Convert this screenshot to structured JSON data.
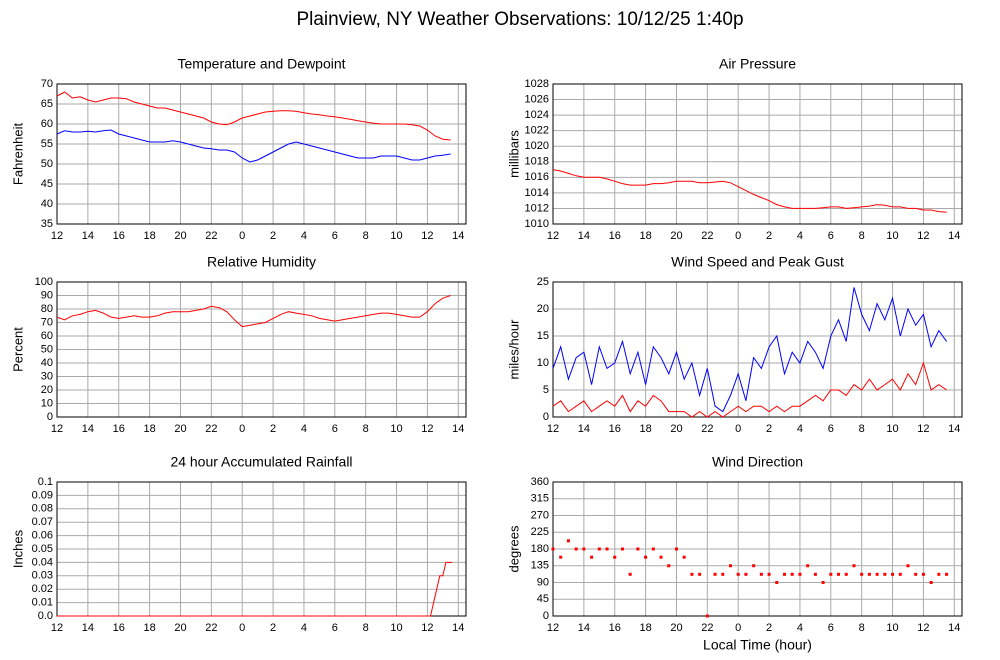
{
  "title": "Plainview, NY Weather Observations: 10/12/25 1:40p",
  "chart_data": [
    {
      "type": "line",
      "title": "Temperature and Dewpoint",
      "ylabel": "Fahrenheit",
      "x": [
        0,
        0.5,
        1,
        1.5,
        2,
        2.5,
        3,
        3.5,
        4,
        4.5,
        5,
        5.5,
        6,
        6.5,
        7,
        7.5,
        8,
        8.5,
        9,
        9.5,
        10,
        10.5,
        11,
        11.5,
        12,
        12.5,
        13,
        13.5,
        14,
        14.5,
        15,
        15.5,
        16,
        16.5,
        17,
        17.5,
        18,
        18.5,
        19,
        19.5,
        20,
        20.5,
        21,
        21.5,
        22,
        22.5,
        23,
        23.5,
        24,
        24.5,
        25,
        25.5
      ],
      "series": [
        {
          "color": "#ff0000",
          "values": [
            67,
            68,
            66.5,
            66.8,
            66,
            65.5,
            66,
            66.5,
            66.5,
            66.3,
            65.5,
            65,
            64.5,
            64,
            64,
            63.5,
            63,
            62.5,
            62,
            61.5,
            60.5,
            60,
            59.8,
            60.5,
            61.5,
            62,
            62.5,
            63,
            63.2,
            63.3,
            63.3,
            63.2,
            62.8,
            62.5,
            62.3,
            62,
            61.8,
            61.5,
            61.2,
            60.8,
            60.5,
            60.2,
            60,
            60,
            60,
            60,
            59.8,
            59.5,
            58.5,
            57,
            56.2,
            56
          ]
        },
        {
          "color": "#0000ff",
          "values": [
            57.5,
            58.3,
            58,
            58,
            58.2,
            58,
            58.3,
            58.5,
            57.5,
            57,
            56.5,
            56,
            55.5,
            55.5,
            55.5,
            55.8,
            55.5,
            55,
            54.5,
            54,
            53.8,
            53.5,
            53.5,
            53,
            51.5,
            50.5,
            51,
            52,
            53,
            54,
            55,
            55.5,
            55,
            54.5,
            54,
            53.5,
            53,
            52.5,
            52,
            51.5,
            51.5,
            51.5,
            52,
            52,
            52,
            51.5,
            51,
            51,
            51.5,
            52,
            52.2,
            52.5
          ]
        }
      ],
      "xlim": [
        0,
        26.5
      ],
      "ylim": [
        35,
        70
      ],
      "yticks": [
        35,
        40,
        45,
        50,
        55,
        60,
        65,
        70
      ],
      "xticks": [
        {
          "value": 0,
          "label": "12"
        },
        {
          "value": 2,
          "label": "14"
        },
        {
          "value": 4,
          "label": "16"
        },
        {
          "value": 6,
          "label": "18"
        },
        {
          "value": 8,
          "label": "20"
        },
        {
          "value": 10,
          "label": "22"
        },
        {
          "value": 12,
          "label": "0"
        },
        {
          "value": 14,
          "label": "2"
        },
        {
          "value": 16,
          "label": "4"
        },
        {
          "value": 18,
          "label": "6"
        },
        {
          "value": 20,
          "label": "8"
        },
        {
          "value": 22,
          "label": "10"
        },
        {
          "value": 24,
          "label": "12"
        },
        {
          "value": 26,
          "label": "14"
        }
      ],
      "grid": true
    },
    {
      "type": "line",
      "title": "Air Pressure",
      "ylabel": "millibars",
      "x": [
        0,
        0.5,
        1,
        1.5,
        2,
        2.5,
        3,
        3.5,
        4,
        4.5,
        5,
        5.5,
        6,
        6.5,
        7,
        7.5,
        8,
        8.5,
        9,
        9.5,
        10,
        10.5,
        11,
        11.5,
        12,
        12.5,
        13,
        13.5,
        14,
        14.5,
        15,
        15.5,
        16,
        16.5,
        17,
        17.5,
        18,
        18.5,
        19,
        19.5,
        20,
        20.5,
        21,
        21.5,
        22,
        22.5,
        23,
        23.5,
        24,
        24.5,
        25,
        25.5
      ],
      "series": [
        {
          "color": "#ff0000",
          "values": [
            1017,
            1016.8,
            1016.5,
            1016.2,
            1016,
            1016,
            1016,
            1015.8,
            1015.5,
            1015.2,
            1015,
            1015,
            1015,
            1015.2,
            1015.2,
            1015.3,
            1015.5,
            1015.5,
            1015.5,
            1015.3,
            1015.3,
            1015.4,
            1015.5,
            1015.3,
            1014.8,
            1014.3,
            1013.8,
            1013.4,
            1013,
            1012.5,
            1012.2,
            1012,
            1012,
            1012,
            1012,
            1012.1,
            1012.2,
            1012.2,
            1012,
            1012.1,
            1012.2,
            1012.3,
            1012.5,
            1012.4,
            1012.2,
            1012.2,
            1012,
            1012,
            1011.8,
            1011.8,
            1011.6,
            1011.5
          ]
        }
      ],
      "xlim": [
        0,
        26.5
      ],
      "ylim": [
        1010,
        1028
      ],
      "yticks": [
        1010,
        1012,
        1014,
        1016,
        1018,
        1020,
        1022,
        1024,
        1026,
        1028
      ],
      "xticks": [
        {
          "value": 0,
          "label": "12"
        },
        {
          "value": 2,
          "label": "14"
        },
        {
          "value": 4,
          "label": "16"
        },
        {
          "value": 6,
          "label": "18"
        },
        {
          "value": 8,
          "label": "20"
        },
        {
          "value": 10,
          "label": "22"
        },
        {
          "value": 12,
          "label": "0"
        },
        {
          "value": 14,
          "label": "2"
        },
        {
          "value": 16,
          "label": "4"
        },
        {
          "value": 18,
          "label": "6"
        },
        {
          "value": 20,
          "label": "8"
        },
        {
          "value": 22,
          "label": "10"
        },
        {
          "value": 24,
          "label": "12"
        },
        {
          "value": 26,
          "label": "14"
        }
      ],
      "grid": true
    },
    {
      "type": "line",
      "title": "Relative Humidity",
      "ylabel": "Percent",
      "x": [
        0,
        0.5,
        1,
        1.5,
        2,
        2.5,
        3,
        3.5,
        4,
        4.5,
        5,
        5.5,
        6,
        6.5,
        7,
        7.5,
        8,
        8.5,
        9,
        9.5,
        10,
        10.5,
        11,
        11.5,
        12,
        12.5,
        13,
        13.5,
        14,
        14.5,
        15,
        15.5,
        16,
        16.5,
        17,
        17.5,
        18,
        18.5,
        19,
        19.5,
        20,
        20.5,
        21,
        21.5,
        22,
        22.5,
        23,
        23.5,
        24,
        24.5,
        25,
        25.5
      ],
      "series": [
        {
          "color": "#ff0000",
          "values": [
            74,
            72,
            75,
            76,
            78,
            79,
            77,
            74,
            73,
            74,
            75,
            74,
            74,
            75,
            77,
            78,
            78,
            78,
            79,
            80,
            82,
            81,
            78,
            72,
            67,
            68,
            69,
            70,
            73,
            76,
            78,
            77,
            76,
            75,
            73,
            72,
            71,
            72,
            73,
            74,
            75,
            76,
            77,
            77,
            76,
            75,
            74,
            74,
            78,
            84,
            88,
            90
          ]
        }
      ],
      "xlim": [
        0,
        26.5
      ],
      "ylim": [
        0,
        100
      ],
      "yticks": [
        0,
        10,
        20,
        30,
        40,
        50,
        60,
        70,
        80,
        90,
        100
      ],
      "xticks": [
        {
          "value": 0,
          "label": "12"
        },
        {
          "value": 2,
          "label": "14"
        },
        {
          "value": 4,
          "label": "16"
        },
        {
          "value": 6,
          "label": "18"
        },
        {
          "value": 8,
          "label": "20"
        },
        {
          "value": 10,
          "label": "22"
        },
        {
          "value": 12,
          "label": "0"
        },
        {
          "value": 14,
          "label": "2"
        },
        {
          "value": 16,
          "label": "4"
        },
        {
          "value": 18,
          "label": "6"
        },
        {
          "value": 20,
          "label": "8"
        },
        {
          "value": 22,
          "label": "10"
        },
        {
          "value": 24,
          "label": "12"
        },
        {
          "value": 26,
          "label": "14"
        }
      ],
      "grid": true
    },
    {
      "type": "line",
      "title": "Wind Speed and Peak Gust",
      "ylabel": "miles/hour",
      "x": [
        0,
        0.5,
        1,
        1.5,
        2,
        2.5,
        3,
        3.5,
        4,
        4.5,
        5,
        5.5,
        6,
        6.5,
        7,
        7.5,
        8,
        8.5,
        9,
        9.5,
        10,
        10.5,
        11,
        11.5,
        12,
        12.5,
        13,
        13.5,
        14,
        14.5,
        15,
        15.5,
        16,
        16.5,
        17,
        17.5,
        18,
        18.5,
        19,
        19.5,
        20,
        20.5,
        21,
        21.5,
        22,
        22.5,
        23,
        23.5,
        24,
        24.5,
        25,
        25.5
      ],
      "series": [
        {
          "color": "#0000ff",
          "values": [
            9,
            13,
            7,
            11,
            12,
            6,
            13,
            9,
            10,
            14,
            8,
            12,
            6,
            13,
            11,
            8,
            12,
            7,
            10,
            4,
            9,
            2,
            1,
            4,
            8,
            3,
            11,
            9,
            13,
            15,
            8,
            12,
            10,
            14,
            12,
            9,
            15,
            18,
            14,
            24,
            19,
            16,
            21,
            18,
            22,
            15,
            20,
            17,
            19,
            13,
            16,
            14
          ]
        },
        {
          "color": "#ff0000",
          "values": [
            2,
            3,
            1,
            2,
            3,
            1,
            2,
            3,
            2,
            4,
            1,
            3,
            2,
            4,
            3,
            1,
            1,
            1,
            0,
            1,
            0,
            1,
            0,
            1,
            2,
            1,
            2,
            2,
            1,
            2,
            1,
            2,
            2,
            3,
            4,
            3,
            5,
            5,
            4,
            6,
            5,
            7,
            5,
            6,
            7,
            5,
            8,
            6,
            10,
            5,
            6,
            5
          ]
        }
      ],
      "xlim": [
        0,
        26.5
      ],
      "ylim": [
        0,
        25
      ],
      "yticks": [
        0,
        5,
        10,
        15,
        20,
        25
      ],
      "xticks": [
        {
          "value": 0,
          "label": "12"
        },
        {
          "value": 2,
          "label": "14"
        },
        {
          "value": 4,
          "label": "16"
        },
        {
          "value": 6,
          "label": "18"
        },
        {
          "value": 8,
          "label": "20"
        },
        {
          "value": 10,
          "label": "22"
        },
        {
          "value": 12,
          "label": "0"
        },
        {
          "value": 14,
          "label": "2"
        },
        {
          "value": 16,
          "label": "4"
        },
        {
          "value": 18,
          "label": "6"
        },
        {
          "value": 20,
          "label": "8"
        },
        {
          "value": 22,
          "label": "10"
        },
        {
          "value": 24,
          "label": "12"
        },
        {
          "value": 26,
          "label": "14"
        }
      ],
      "grid": true
    },
    {
      "type": "line",
      "title": "24 hour Accumulated Rainfall",
      "ylabel": "Inches",
      "x": [
        0,
        24.2,
        24.4,
        24.6,
        24.8,
        25,
        25.2,
        25.6
      ],
      "series": [
        {
          "color": "#ff0000",
          "values": [
            0,
            0,
            0.01,
            0.02,
            0.03,
            0.03,
            0.04,
            0.04
          ]
        }
      ],
      "xlim": [
        0,
        26.5
      ],
      "ylim": [
        0,
        0.1
      ],
      "yticks": [
        {
          "value": 0,
          "label": "0.0"
        },
        0.01,
        0.02,
        0.03,
        0.04,
        0.05,
        0.06,
        0.07,
        0.08,
        0.09,
        0.1
      ],
      "xticks": [
        {
          "value": 0,
          "label": "12"
        },
        {
          "value": 2,
          "label": "14"
        },
        {
          "value": 4,
          "label": "16"
        },
        {
          "value": 6,
          "label": "18"
        },
        {
          "value": 8,
          "label": "20"
        },
        {
          "value": 10,
          "label": "22"
        },
        {
          "value": 12,
          "label": "0"
        },
        {
          "value": 14,
          "label": "2"
        },
        {
          "value": 16,
          "label": "4"
        },
        {
          "value": 18,
          "label": "6"
        },
        {
          "value": 20,
          "label": "8"
        },
        {
          "value": 22,
          "label": "10"
        },
        {
          "value": 24,
          "label": "12"
        },
        {
          "value": 26,
          "label": "14"
        }
      ],
      "grid": true
    },
    {
      "type": "scatter",
      "title": "Wind Direction",
      "ylabel": "degrees",
      "xlabel": "Local Time (hour)",
      "x": [
        0,
        0.5,
        1,
        1.5,
        2,
        2.5,
        3,
        3.5,
        4,
        4.5,
        5,
        5.5,
        6,
        6.5,
        7,
        7.5,
        8,
        8.5,
        9,
        9.5,
        10,
        10.5,
        11,
        11.5,
        12,
        12.5,
        13,
        13.5,
        14,
        14.5,
        15,
        15.5,
        16,
        16.5,
        17,
        17.5,
        18,
        18.5,
        19,
        19.5,
        20,
        20.5,
        21,
        21.5,
        22,
        22.5,
        23,
        23.5,
        24,
        24.5,
        25,
        25.5
      ],
      "series": [
        {
          "color": "#ff0000",
          "values": [
            180,
            158,
            202,
            180,
            180,
            158,
            180,
            180,
            158,
            180,
            112,
            180,
            158,
            180,
            158,
            135,
            180,
            158,
            112,
            112,
            0,
            112,
            112,
            135,
            112,
            112,
            135,
            112,
            112,
            90,
            112,
            112,
            112,
            135,
            112,
            90,
            112,
            112,
            112,
            135,
            112,
            112,
            112,
            112,
            112,
            112,
            135,
            112,
            112,
            90,
            112,
            112
          ]
        }
      ],
      "xlim": [
        0,
        26.5
      ],
      "ylim": [
        0,
        360
      ],
      "yticks": [
        0,
        45,
        90,
        135,
        180,
        225,
        270,
        315,
        360
      ],
      "xticks": [
        {
          "value": 0,
          "label": "12"
        },
        {
          "value": 2,
          "label": "14"
        },
        {
          "value": 4,
          "label": "16"
        },
        {
          "value": 6,
          "label": "18"
        },
        {
          "value": 8,
          "label": "20"
        },
        {
          "value": 10,
          "label": "22"
        },
        {
          "value": 12,
          "label": "0"
        },
        {
          "value": 14,
          "label": "2"
        },
        {
          "value": 16,
          "label": "4"
        },
        {
          "value": 18,
          "label": "6"
        },
        {
          "value": 20,
          "label": "8"
        },
        {
          "value": 22,
          "label": "10"
        },
        {
          "value": 24,
          "label": "12"
        },
        {
          "value": 26,
          "label": "14"
        }
      ],
      "grid": true
    }
  ]
}
